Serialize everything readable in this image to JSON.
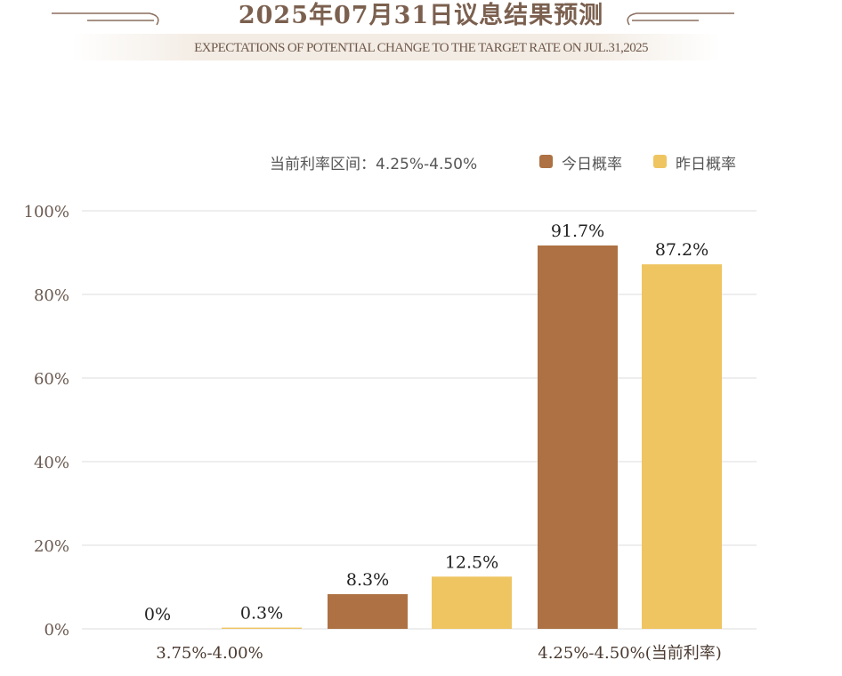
{
  "header": {
    "title": "2025年07月31日议息结果预测",
    "subtitle": "EXPECTATIONS OF POTENTIAL CHANGE TO THE TARGET RATE ON JUL.31,2025"
  },
  "legend": {
    "current_rate_text": "当前利率区间：4.25%-4.50%",
    "today_label": "今日概率",
    "yesterday_label": "昨日概率"
  },
  "colors": {
    "today": "#ad7143",
    "yesterday": "#efc562",
    "title": "#7b604f",
    "grid": "#dddddd"
  },
  "chart_data": {
    "type": "bar",
    "categories": [
      "3.75%-4.00%",
      "",
      "4.25%-4.50%(当前利率)"
    ],
    "series": [
      {
        "name": "今日概率",
        "values": [
          0,
          8.3,
          91.7
        ],
        "labels": [
          "0%",
          "8.3%",
          "91.7%"
        ]
      },
      {
        "name": "昨日概率",
        "values": [
          0.3,
          12.5,
          87.2
        ],
        "labels": [
          "0.3%",
          "12.5%",
          "87.2%"
        ]
      }
    ],
    "ylim": [
      0,
      100
    ],
    "yticks": [
      0,
      20,
      40,
      60,
      80,
      100
    ],
    "ytick_labels": [
      "0%",
      "20%",
      "40%",
      "60%",
      "80%",
      "100%"
    ],
    "grid": true,
    "legend_position": "top-right"
  }
}
